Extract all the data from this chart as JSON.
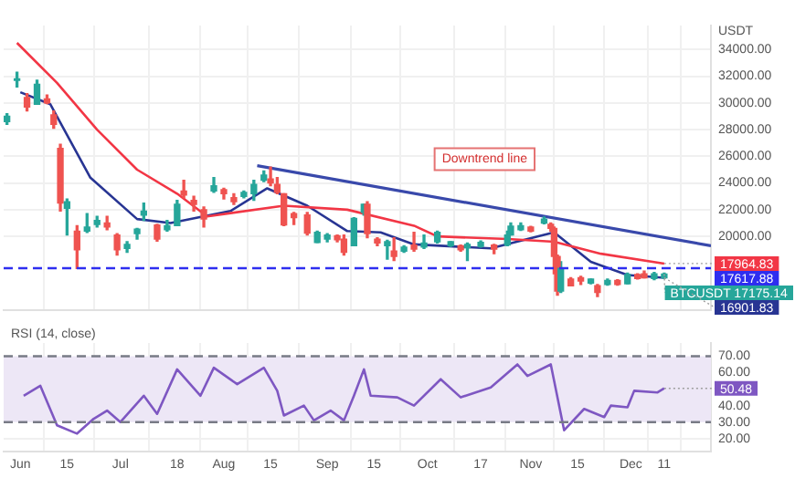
{
  "chart_data": [
    {
      "type": "candlestick",
      "x": [
        "--05-28",
        "--05-31",
        "--06-03",
        "--06-06",
        "--06-09",
        "--06-11",
        "--06-13",
        "--06-15",
        "--06-18",
        "--06-21",
        "--06-24",
        "--06-27",
        "--06-30",
        "--07-03",
        "--07-06",
        "--07-08",
        "--07-12",
        "--07-15",
        "--07-18",
        "--07-20",
        "--07-23",
        "--07-26",
        "--07-29",
        "--08-01",
        "--08-04",
        "--08-07",
        "--08-10",
        "--08-13",
        "--08-15",
        "--08-17",
        "--08-19",
        "--08-22",
        "--08-26",
        "--08-29",
        "--09-01",
        "--09-04",
        "--09-06",
        "--09-09",
        "--09-12",
        "--09-13",
        "--09-16",
        "--09-19",
        "--09-21",
        "--09-24",
        "--09-27",
        "--09-30",
        "--10-04",
        "--10-08",
        "--10-11",
        "--10-13",
        "--10-17",
        "--10-21",
        "--10-25",
        "--10-26",
        "--10-29",
        "--11-01",
        "--11-05",
        "--11-07",
        "--11-08",
        "--11-09",
        "--11-10",
        "--11-13",
        "--11-16",
        "--11-19",
        "--11-21",
        "--11-24",
        "--11-27",
        "--11-30",
        "--12-03",
        "--12-05",
        "--12-08",
        "--12-11"
      ],
      "ohlc": [
        [
          28600,
          29200,
          28400,
          29000
        ],
        [
          31700,
          32300,
          31200,
          31800
        ],
        [
          30400,
          30700,
          29400,
          29700
        ],
        [
          29900,
          31700,
          29900,
          31400
        ],
        [
          30300,
          30600,
          29950,
          30000
        ],
        [
          29100,
          29400,
          28100,
          28400
        ],
        [
          26600,
          26900,
          21900,
          22500
        ],
        [
          22100,
          22800,
          20100,
          22600
        ],
        [
          20400,
          20800,
          17600,
          19000
        ],
        [
          20400,
          21700,
          20300,
          20700
        ],
        [
          20900,
          21500,
          20700,
          21200
        ],
        [
          21000,
          21500,
          20500,
          20700
        ],
        [
          20100,
          20200,
          18600,
          19000
        ],
        [
          19100,
          19600,
          18800,
          19400
        ],
        [
          20200,
          20600,
          19800,
          20550
        ],
        [
          21600,
          22500,
          21200,
          21900
        ],
        [
          20850,
          20900,
          19650,
          19800
        ],
        [
          20500,
          21200,
          20400,
          20800
        ],
        [
          20800,
          22700,
          20800,
          22400
        ],
        [
          23400,
          24200,
          22900,
          23100
        ],
        [
          22700,
          23000,
          21900,
          22400
        ],
        [
          22000,
          22200,
          20700,
          21300
        ],
        [
          23400,
          24400,
          23300,
          23800
        ],
        [
          23500,
          23600,
          22800,
          23200
        ],
        [
          22900,
          23200,
          22400,
          22600
        ],
        [
          23000,
          23400,
          22900,
          23300
        ],
        [
          23200,
          24200,
          22700,
          23900
        ],
        [
          24200,
          24900,
          24100,
          24600
        ],
        [
          24300,
          25200,
          23800,
          24000
        ],
        [
          23900,
          24400,
          23200,
          23300
        ],
        [
          23200,
          23200,
          20800,
          20850
        ],
        [
          21700,
          21800,
          20900,
          21400
        ],
        [
          21600,
          21800,
          20100,
          20250
        ],
        [
          19550,
          20400,
          19550,
          20300
        ],
        [
          19800,
          20200,
          19600,
          20100
        ],
        [
          20050,
          20100,
          19600,
          19750
        ],
        [
          19800,
          20100,
          18600,
          18800
        ],
        [
          19300,
          21400,
          19300,
          21350
        ],
        [
          21800,
          22400,
          21600,
          22400
        ],
        [
          22400,
          22600,
          19900,
          20200
        ],
        [
          19800,
          19900,
          19300,
          19500
        ],
        [
          19300,
          19700,
          18300,
          19600
        ],
        [
          18900,
          19900,
          18200,
          18500
        ],
        [
          18900,
          19300,
          18800,
          19200
        ],
        [
          19350,
          20300,
          18900,
          19050
        ],
        [
          19200,
          20100,
          19100,
          19500
        ],
        [
          19600,
          20400,
          19500,
          20300
        ],
        [
          19300,
          19600,
          19250,
          19600
        ],
        [
          19300,
          19350,
          18900,
          19000
        ],
        [
          19150,
          19500,
          18200,
          19400
        ],
        [
          19250,
          19650,
          19200,
          19550
        ],
        [
          19350,
          19400,
          18700,
          19050
        ],
        [
          19350,
          20400,
          19300,
          20100
        ],
        [
          20100,
          21000,
          20100,
          20770
        ],
        [
          20500,
          21000,
          20450,
          20800
        ],
        [
          20700,
          20750,
          20350,
          20400
        ],
        [
          21000,
          21450,
          20950,
          21300
        ],
        [
          20900,
          21000,
          20400,
          20600
        ],
        [
          20600,
          20700,
          17200,
          18500
        ],
        [
          18500,
          18600,
          15600,
          15900
        ],
        [
          15900,
          18100,
          15800,
          17600
        ],
        [
          16800,
          16900,
          16300,
          16300
        ],
        [
          16900,
          17000,
          16400,
          16650
        ],
        [
          16500,
          16800,
          16450,
          16800
        ],
        [
          16300,
          16400,
          15500,
          15800
        ],
        [
          16400,
          16800,
          16350,
          16700
        ],
        [
          16700,
          16750,
          16350,
          16400
        ],
        [
          16450,
          17250,
          16450,
          17150
        ],
        [
          17150,
          17200,
          16800,
          16850
        ],
        [
          17200,
          17400,
          16900,
          16900
        ],
        [
          16850,
          17300,
          16750,
          17200
        ],
        [
          16900,
          17250,
          16850,
          17175
        ]
      ],
      "series": [
        {
          "type": "line",
          "color": "#f23645",
          "x": [
            "--05-31",
            "--06-12",
            "--06-24",
            "--07-06",
            "--07-18",
            "--07-27",
            "--08-19",
            "--09-07",
            "--09-27",
            "--10-04",
            "--10-25",
            "--11-08",
            "--11-22",
            "--12-11"
          ],
          "values": [
            34500,
            31500,
            28000,
            25000,
            23200,
            21500,
            22300,
            22000,
            20800,
            20000,
            19800,
            19600,
            18700,
            17964.83
          ]
        },
        {
          "type": "line",
          "color": "#283593",
          "x": [
            "--06-01",
            "--06-10",
            "--06-22",
            "--07-06",
            "--07-16",
            "--08-03",
            "--08-14",
            "--08-26",
            "--09-07",
            "--09-17",
            "--09-27",
            "--10-20",
            "--11-03",
            "--11-08",
            "--11-19",
            "--11-30",
            "--12-11"
          ],
          "values": [
            30800,
            29900,
            24400,
            21300,
            21000,
            21900,
            23600,
            22300,
            20400,
            20300,
            19400,
            19100,
            20000,
            20300,
            18100,
            17100,
            16901.83
          ]
        },
        {
          "type": "line",
          "color": "#3949ab",
          "x": [
            "--08-11",
            "--12-25"
          ],
          "values": [
            25300,
            19300
          ]
        }
      ],
      "xlim": [
        "--05-27",
        "--12-25"
      ],
      "ylim": [
        14500,
        35800
      ],
      "yticks": [
        {
          "value": 20000,
          "label": "20000.00"
        },
        {
          "value": 22000,
          "label": "22000.00"
        },
        {
          "value": 24000,
          "label": "24000.00"
        },
        {
          "value": 26000,
          "label": "26000.00"
        },
        {
          "value": 28000,
          "label": "28000.00"
        },
        {
          "value": 30000,
          "label": "30000.00"
        },
        {
          "value": 32000,
          "label": "32000.00"
        },
        {
          "value": 34000,
          "label": "34000.00"
        }
      ],
      "xticks": [
        {
          "value": "--06-01",
          "label": null
        },
        {
          "value": "--06-15",
          "label": null
        },
        {
          "value": "--07-01",
          "label": null
        },
        {
          "value": "--07-18",
          "label": null
        },
        {
          "value": "--08-01",
          "label": null
        },
        {
          "value": "--08-15",
          "label": null
        },
        {
          "value": "--09-01",
          "label": null
        },
        {
          "value": "--09-15",
          "label": null
        },
        {
          "value": "--10-01",
          "label": null
        },
        {
          "value": "--10-17",
          "label": null
        },
        {
          "value": "--11-01",
          "label": null
        },
        {
          "value": "--11-15",
          "label": null
        },
        {
          "value": "--12-01",
          "label": null
        },
        {
          "value": "--12-11",
          "label": null
        }
      ],
      "ylabel": "USDT",
      "ref_lines": [
        {
          "axis": "y",
          "value": 17617.88,
          "label": "17617.88",
          "color": "#2e2ef0",
          "line_style": "dashed"
        }
      ],
      "annotations": [
        "Downtrend line",
        {
          "text": "17964.83",
          "x": "--12-11",
          "y": 17964.83
        },
        {
          "text": "BTCUSDT 17175.14",
          "x": "--12-11",
          "y": 17175.14
        },
        {
          "text": "16901.83",
          "x": "--12-11",
          "y": 16901.83
        }
      ],
      "grid": true,
      "tick_labels": "y"
    },
    {
      "type": "line",
      "title": "RSI (14, close)",
      "x": [
        "--06-02",
        "--06-07",
        "--06-12",
        "--06-18",
        "--06-23",
        "--06-27",
        "--07-01",
        "--07-08",
        "--07-12",
        "--07-18",
        "--07-25",
        "--07-29",
        "--08-05",
        "--08-13",
        "--08-17",
        "--08-19",
        "--08-25",
        "--08-28",
        "--09-02",
        "--09-06",
        "--09-09",
        "--09-12",
        "--09-14",
        "--09-22",
        "--09-27",
        "--10-05",
        "--10-11",
        "--10-20",
        "--10-28",
        "--10-31",
        "--11-07",
        "--11-11",
        "--11-17",
        "--11-23",
        "--11-25",
        "--11-30",
        "--12-02",
        "--12-09",
        "--12-11"
      ],
      "series": [
        {
          "color": "#7e57c2",
          "values": [
            46,
            52,
            28,
            23,
            32,
            37,
            30,
            46,
            35,
            62,
            46,
            63,
            53,
            63,
            49,
            34,
            40,
            31,
            37,
            31,
            46,
            62,
            46,
            45,
            40,
            56,
            45,
            51,
            65,
            58,
            65,
            25,
            38,
            33,
            40,
            39,
            49,
            48,
            50.48
          ]
        }
      ],
      "xlim": [
        "--05-27",
        "--12-25"
      ],
      "ylim": [
        12,
        78
      ],
      "yticks": [
        {
          "value": 20,
          "label": "20.00"
        },
        {
          "value": 30,
          "label": "30.00"
        },
        {
          "value": 40,
          "label": "40.00"
        },
        {
          "value": 60,
          "label": "60.00"
        },
        {
          "value": 70,
          "label": "70.00"
        }
      ],
      "xticks": [
        {
          "value": "--06-01",
          "label": "Jun"
        },
        {
          "value": "--06-15",
          "label": "15"
        },
        {
          "value": "--07-01",
          "label": "Jul"
        },
        {
          "value": "--07-18",
          "label": "18"
        },
        {
          "value": "--08-01",
          "label": "Aug"
        },
        {
          "value": "--08-15",
          "label": "15"
        },
        {
          "value": "--09-01",
          "label": "Sep"
        },
        {
          "value": "--09-15",
          "label": "15"
        },
        {
          "value": "--10-01",
          "label": "Oct"
        },
        {
          "value": "--10-17",
          "label": "17"
        },
        {
          "value": "--11-01",
          "label": "Nov"
        },
        {
          "value": "--11-15",
          "label": "15"
        },
        {
          "value": "--12-01",
          "label": "Dec"
        },
        {
          "value": "--12-11",
          "label": "11"
        }
      ],
      "bands": [
        {
          "axis": "y",
          "from": 30,
          "to": 70,
          "color": "#ede7f6"
        }
      ],
      "ref_lines": [
        {
          "axis": "y",
          "value": 70,
          "color": "#787b86",
          "line_style": "dashed"
        },
        {
          "axis": "y",
          "value": 30,
          "color": "#787b86",
          "line_style": "dashed"
        }
      ],
      "annotations": [
        {
          "text": "50.48",
          "x": "--12-11",
          "y": 50.48
        }
      ],
      "grid": true
    }
  ]
}
